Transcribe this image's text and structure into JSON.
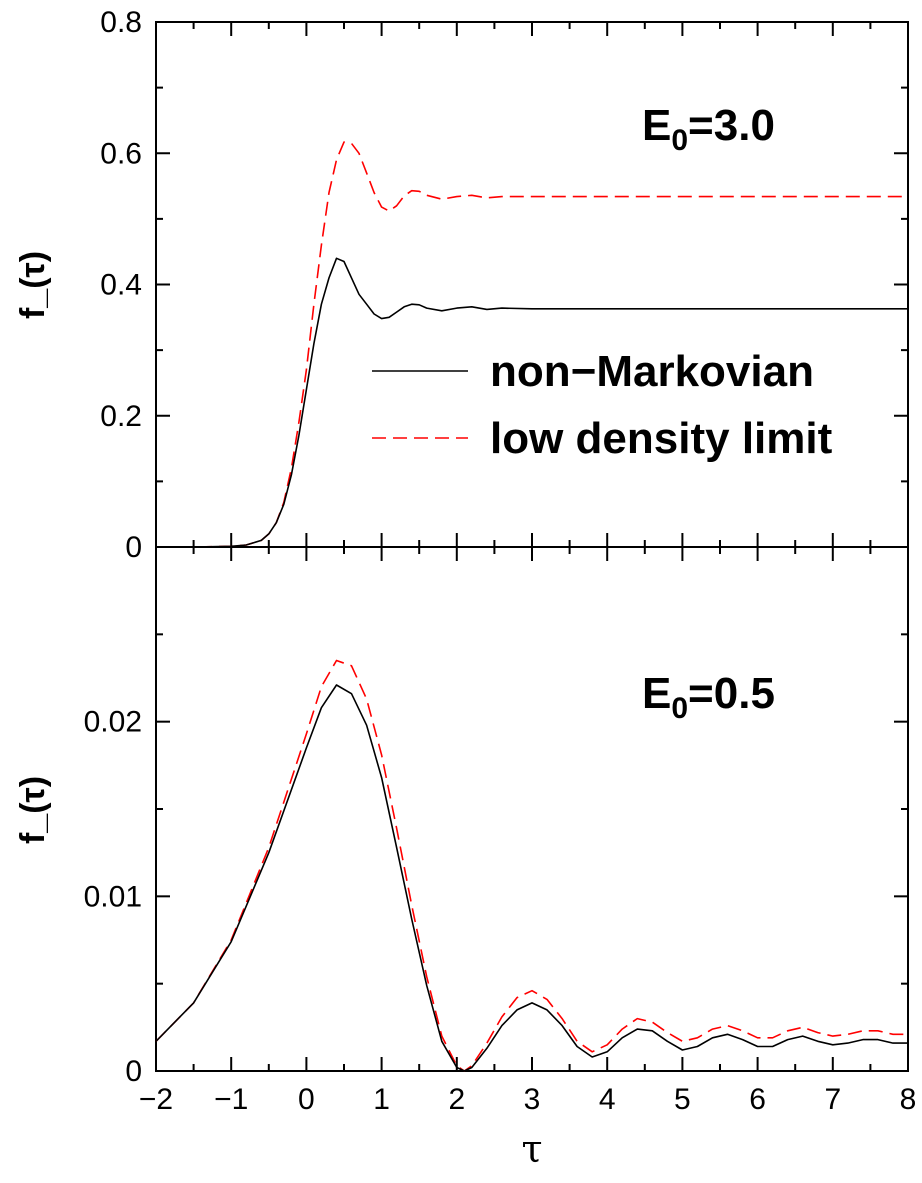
{
  "chart_data": [
    {
      "type": "line",
      "panel": "top",
      "annotation": {
        "main": "E",
        "sub": "0",
        "rest": "=3.0"
      },
      "ylabel": "f_(τ)",
      "xlim": [
        -2,
        8
      ],
      "ylim": [
        0,
        0.8
      ],
      "yticks": [
        "0",
        "0.2",
        "0.4",
        "0.6",
        "0.8"
      ],
      "yticks_values": [
        0,
        0.2,
        0.4,
        0.6,
        0.8
      ],
      "legend": {
        "position": "center-right",
        "entries": [
          "non−Markovian",
          "low density limit"
        ]
      },
      "series": [
        {
          "name": "non−Markovian",
          "color": "#000000",
          "style": "solid",
          "x": [
            -2,
            -1.5,
            -1,
            -0.8,
            -0.6,
            -0.5,
            -0.4,
            -0.3,
            -0.2,
            -0.1,
            0,
            0.1,
            0.2,
            0.3,
            0.4,
            0.5,
            0.6,
            0.7,
            0.8,
            0.9,
            1.0,
            1.1,
            1.2,
            1.3,
            1.4,
            1.5,
            1.6,
            1.8,
            2.0,
            2.2,
            2.4,
            2.6,
            3.0,
            3.5,
            4.0,
            5,
            6,
            7,
            8
          ],
          "y": [
            0,
            0,
            0.001,
            0.003,
            0.01,
            0.02,
            0.037,
            0.065,
            0.11,
            0.17,
            0.24,
            0.31,
            0.37,
            0.41,
            0.44,
            0.435,
            0.41,
            0.385,
            0.37,
            0.355,
            0.348,
            0.35,
            0.358,
            0.366,
            0.37,
            0.369,
            0.364,
            0.36,
            0.364,
            0.366,
            0.362,
            0.364,
            0.363,
            0.363,
            0.363,
            0.363,
            0.363,
            0.363,
            0.363
          ]
        },
        {
          "name": "low density limit",
          "color": "#ff0000",
          "style": "dashed",
          "x": [
            -2,
            -1.5,
            -1,
            -0.8,
            -0.6,
            -0.5,
            -0.4,
            -0.3,
            -0.2,
            -0.1,
            0,
            0.1,
            0.2,
            0.3,
            0.4,
            0.5,
            0.6,
            0.7,
            0.8,
            0.9,
            1.0,
            1.1,
            1.2,
            1.3,
            1.4,
            1.5,
            1.6,
            1.8,
            2.0,
            2.2,
            2.4,
            2.6,
            3.0,
            3.5,
            4.0,
            5,
            6,
            7,
            8
          ],
          "y": [
            0,
            0,
            0.001,
            0.003,
            0.01,
            0.02,
            0.037,
            0.068,
            0.12,
            0.19,
            0.27,
            0.37,
            0.46,
            0.54,
            0.59,
            0.617,
            0.615,
            0.6,
            0.57,
            0.54,
            0.518,
            0.512,
            0.52,
            0.535,
            0.543,
            0.542,
            0.536,
            0.53,
            0.534,
            0.536,
            0.532,
            0.534,
            0.534,
            0.534,
            0.534,
            0.534,
            0.534,
            0.534,
            0.534
          ]
        }
      ]
    },
    {
      "type": "line",
      "panel": "bottom",
      "annotation": {
        "main": "E",
        "sub": "0",
        "rest": "=0.5"
      },
      "ylabel": "f_(τ)",
      "xlabel": "τ",
      "xlim": [
        -2,
        8
      ],
      "ylim": [
        0,
        0.03
      ],
      "xticks": [
        "−2",
        "−1",
        "0",
        "1",
        "2",
        "3",
        "4",
        "5",
        "6",
        "7",
        "8"
      ],
      "xticks_values": [
        -2,
        -1,
        0,
        1,
        2,
        3,
        4,
        5,
        6,
        7,
        8
      ],
      "yticks": [
        "0",
        "0.01",
        "0.02"
      ],
      "yticks_values": [
        0,
        0.01,
        0.02
      ],
      "series": [
        {
          "name": "non−Markovian",
          "color": "#000000",
          "style": "solid",
          "x": [
            -2,
            -1.5,
            -1,
            -0.5,
            0,
            0.2,
            0.4,
            0.6,
            0.8,
            1.0,
            1.2,
            1.4,
            1.6,
            1.8,
            2.0,
            2.1,
            2.2,
            2.4,
            2.6,
            2.8,
            3.0,
            3.2,
            3.4,
            3.6,
            3.8,
            4.0,
            4.2,
            4.4,
            4.6,
            4.8,
            5.0,
            5.2,
            5.4,
            5.6,
            5.8,
            6.0,
            6.2,
            6.4,
            6.6,
            6.8,
            7.0,
            7.2,
            7.4,
            7.6,
            7.8,
            8.0
          ],
          "y": [
            0.0017,
            0.0039,
            0.0074,
            0.0125,
            0.0185,
            0.0208,
            0.0221,
            0.0216,
            0.0198,
            0.0168,
            0.0128,
            0.0087,
            0.0049,
            0.0017,
            0.0002,
            0.0,
            0.0002,
            0.0013,
            0.0026,
            0.0035,
            0.0039,
            0.0035,
            0.0026,
            0.0014,
            0.0008,
            0.0011,
            0.0019,
            0.0024,
            0.0023,
            0.0017,
            0.0012,
            0.0014,
            0.0019,
            0.0021,
            0.0018,
            0.0014,
            0.0014,
            0.0018,
            0.002,
            0.0017,
            0.0015,
            0.0016,
            0.0018,
            0.0018,
            0.0016,
            0.0016
          ]
        },
        {
          "name": "low density limit",
          "color": "#ff0000",
          "style": "dashed",
          "x": [
            -2,
            -1.5,
            -1,
            -0.5,
            0,
            0.2,
            0.4,
            0.6,
            0.8,
            1.0,
            1.2,
            1.4,
            1.6,
            1.8,
            2.0,
            2.1,
            2.2,
            2.4,
            2.6,
            2.8,
            3.0,
            3.2,
            3.4,
            3.6,
            3.8,
            4.0,
            4.2,
            4.4,
            4.6,
            4.8,
            5.0,
            5.2,
            5.4,
            5.6,
            5.8,
            6.0,
            6.2,
            6.4,
            6.6,
            6.8,
            7.0,
            7.2,
            7.4,
            7.6,
            7.8,
            8.0
          ],
          "y": [
            0.0017,
            0.0039,
            0.0075,
            0.0128,
            0.0193,
            0.022,
            0.0235,
            0.0232,
            0.0213,
            0.0181,
            0.0139,
            0.0095,
            0.0054,
            0.002,
            0.0003,
            0.0,
            0.0003,
            0.0016,
            0.0031,
            0.0042,
            0.0046,
            0.0041,
            0.003,
            0.0017,
            0.0011,
            0.0015,
            0.0024,
            0.003,
            0.0028,
            0.0022,
            0.0017,
            0.0019,
            0.0024,
            0.0026,
            0.0023,
            0.0019,
            0.0019,
            0.0023,
            0.0025,
            0.0022,
            0.002,
            0.0021,
            0.0023,
            0.0023,
            0.0021,
            0.0021
          ]
        }
      ]
    }
  ]
}
